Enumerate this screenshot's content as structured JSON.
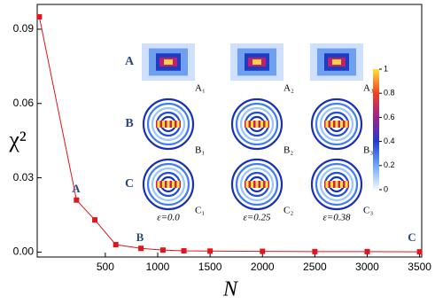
{
  "chart_data": {
    "type": "line",
    "x_label": "N",
    "y_label": "χ²",
    "x": [
      -130,
      225,
      400,
      600,
      840,
      1050,
      1250,
      1500,
      2000,
      2500,
      3000,
      3500
    ],
    "series": [
      {
        "color": "#e3141b",
        "values": [
          0.095,
          0.021,
          0.013,
          0.003,
          0.0015,
          0.0008,
          0.0005,
          0.0004,
          0.0003,
          0.0002,
          0.0002,
          0.0001
        ]
      }
    ],
    "xlim": [
      -150,
      3520
    ],
    "xticks": [
      500,
      1000,
      1500,
      2000,
      2500,
      3000,
      3500
    ],
    "ylim": [
      -0.002,
      0.1
    ],
    "yticks": [
      {
        "value": 0,
        "label": "0.00"
      },
      0.03,
      0.06,
      0.09
    ],
    "annotations": [
      "A",
      "B",
      "C"
    ],
    "inset": {
      "rows": [
        "A",
        "B",
        "C"
      ],
      "panels": [
        [
          "A₁",
          "A₂",
          "A₃"
        ],
        [
          "B₁",
          "B₂",
          "B₃"
        ],
        [
          "C₁",
          "C₂",
          "C₃"
        ]
      ],
      "epsilon": [
        "ε=0.0",
        "ε=0.25",
        "ε=0.38"
      ],
      "colorbar_ticks": [
        0,
        0.2,
        0.4,
        0.6,
        0.8,
        1
      ]
    }
  }
}
